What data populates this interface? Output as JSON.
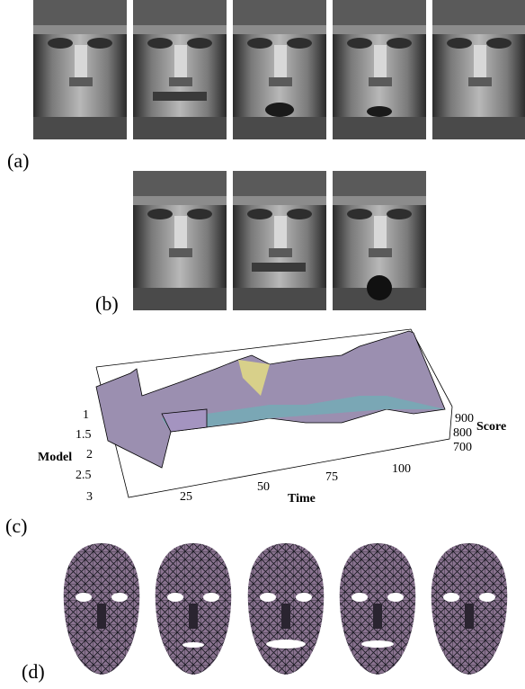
{
  "panels": {
    "a": {
      "label": "(a)"
    },
    "b": {
      "label": "(b)"
    },
    "c": {
      "label": "(c)",
      "model_axis": {
        "title": "Model",
        "ticks": [
          1,
          1.5,
          2,
          2.5,
          3
        ]
      },
      "time_axis": {
        "title": "Time",
        "ticks": [
          25,
          50,
          75,
          100
        ]
      },
      "score_axis": {
        "title": "Score",
        "ticks": [
          900,
          800,
          700
        ]
      }
    },
    "d": {
      "label": "(d)"
    }
  }
}
